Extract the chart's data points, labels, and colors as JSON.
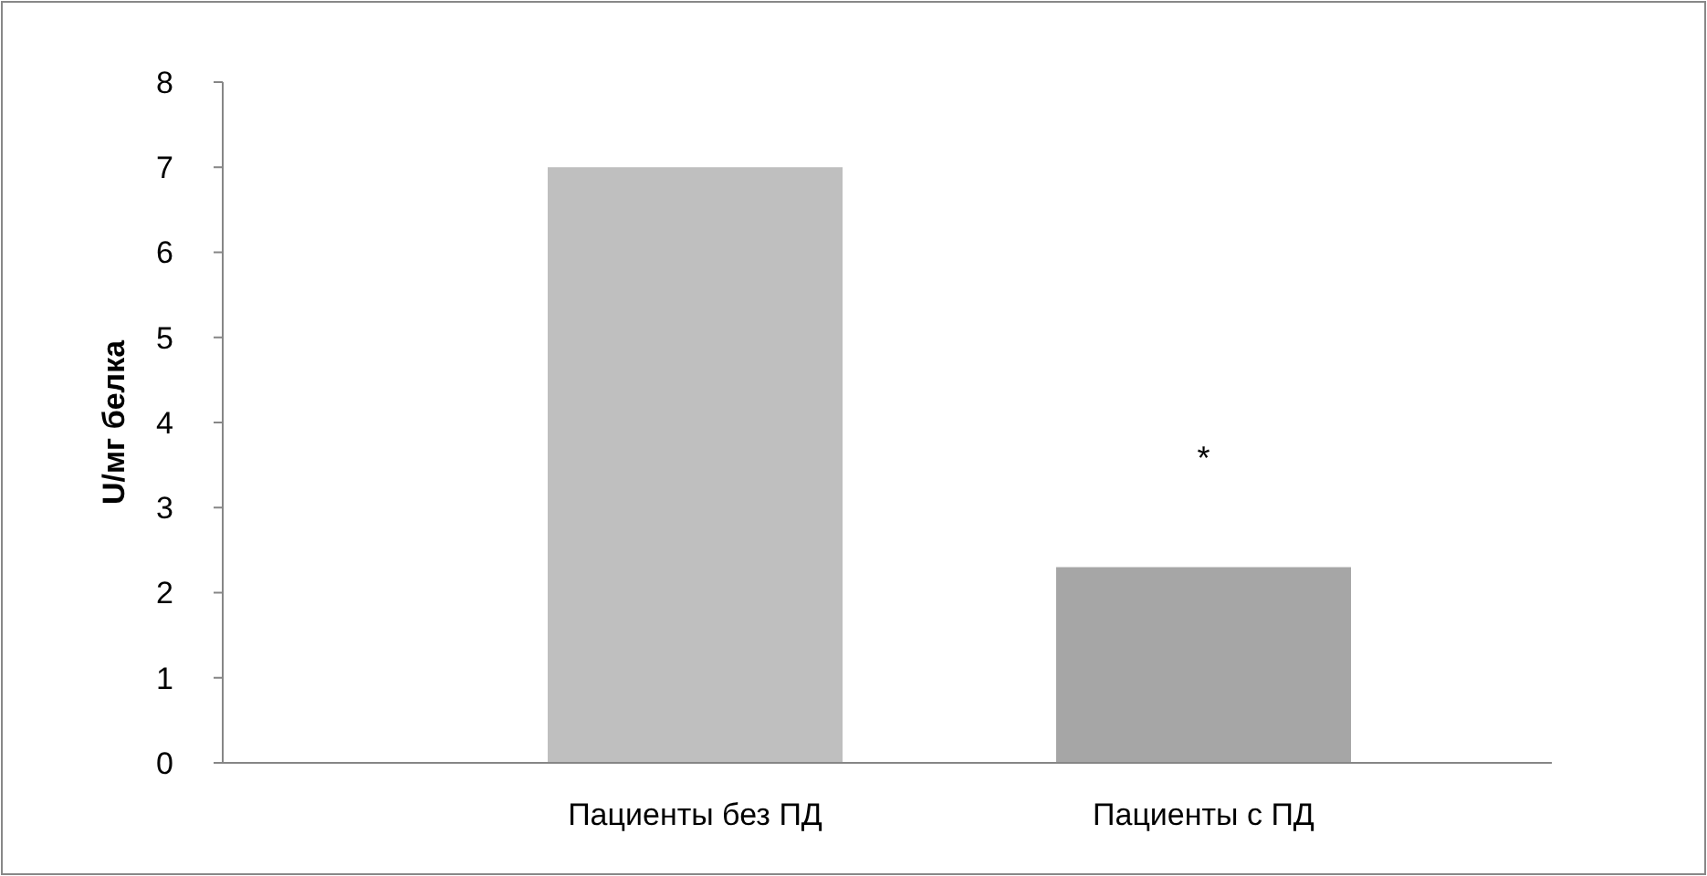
{
  "chart_data": {
    "type": "bar",
    "ylabel": "U/мг белка",
    "categories": [
      "Пациенты без ПД",
      "Пациенты с ПД"
    ],
    "values": [
      7,
      2.3
    ],
    "colors": [
      "#bfbfbf",
      "#a6a6a6"
    ],
    "ylim": [
      0,
      8
    ],
    "yticks": [
      0,
      1,
      2,
      3,
      4,
      5,
      6,
      7,
      8
    ],
    "grid": false,
    "annotations": [
      "*"
    ]
  }
}
